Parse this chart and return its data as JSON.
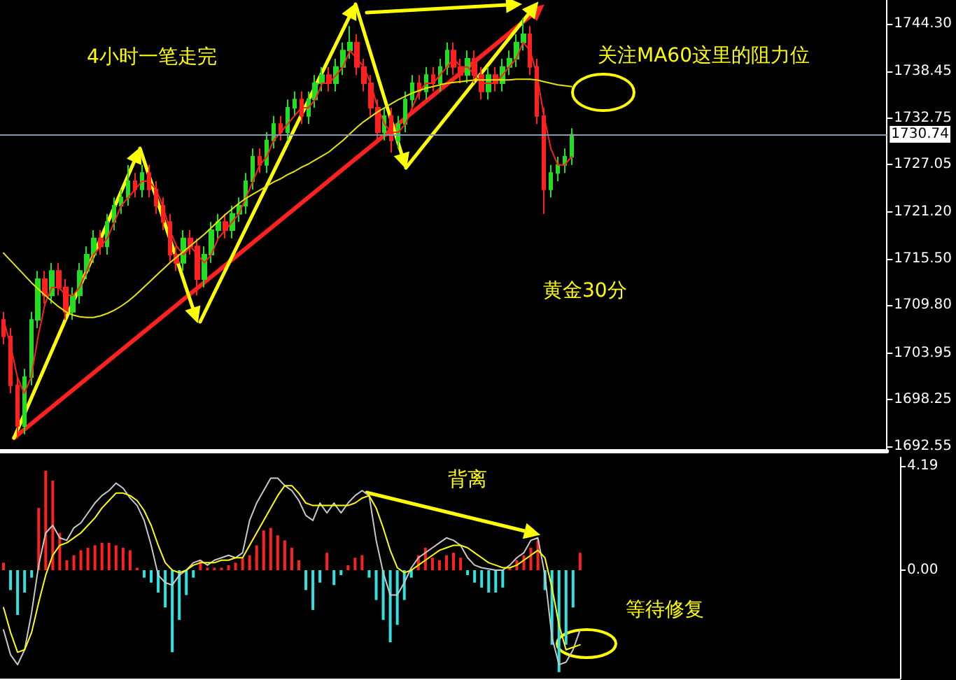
{
  "chart_data": [
    {
      "type": "candlestick",
      "categories": [
        null,
        null,
        null,
        null,
        null,
        null,
        null,
        null,
        null,
        null,
        null,
        null,
        null,
        null,
        null,
        null,
        null,
        null,
        null,
        null,
        null,
        null,
        null,
        null,
        null,
        null,
        null,
        null,
        null,
        null,
        null,
        null,
        null,
        null,
        null,
        null,
        null,
        null,
        null,
        null,
        null,
        null,
        null,
        null,
        null,
        null,
        null,
        null,
        null,
        null,
        null,
        null,
        null,
        null,
        null,
        null,
        null,
        null,
        null,
        null,
        null,
        null,
        null,
        null,
        null,
        null,
        null,
        null,
        null,
        null,
        null,
        null,
        null,
        null,
        null,
        null,
        null,
        null,
        null,
        null,
        null,
        null,
        null,
        null,
        null,
        null,
        null,
        null,
        null,
        null,
        null,
        null,
        null,
        null,
        null,
        null,
        null,
        null,
        null,
        null,
        null,
        null,
        null,
        null,
        null,
        null,
        null,
        null,
        null,
        null,
        null,
        null,
        null,
        null,
        null,
        null,
        null,
        null,
        null,
        null,
        null,
        null,
        null,
        null,
        null,
        null,
        null,
        null
      ],
      "ohlc": [
        [
          1708,
          1709,
          1705,
          1706
        ],
        [
          1706,
          1707,
          1699,
          1700
        ],
        [
          1700,
          1701,
          1693.5,
          1695
        ],
        [
          1695,
          1702,
          1694,
          1701
        ],
        [
          1701,
          1709,
          1700,
          1708
        ],
        [
          1708,
          1714,
          1707,
          1713
        ],
        [
          1713,
          1714,
          1710,
          1711
        ],
        [
          1711,
          1715,
          1710,
          1714
        ],
        [
          1714,
          1715,
          1711,
          1712
        ],
        [
          1712,
          1713,
          1708,
          1709
        ],
        [
          1709,
          1712,
          1708,
          1711
        ],
        [
          1711,
          1715,
          1710,
          1714
        ],
        [
          1714,
          1717,
          1713,
          1716
        ],
        [
          1716,
          1719,
          1715,
          1718
        ],
        [
          1718,
          1719,
          1716,
          1717
        ],
        [
          1717,
          1721,
          1716,
          1720
        ],
        [
          1720,
          1723,
          1719,
          1722
        ],
        [
          1722,
          1724,
          1721,
          1723
        ],
        [
          1723,
          1727,
          1722,
          1725
        ],
        [
          1725,
          1726,
          1723,
          1724
        ],
        [
          1724,
          1727,
          1723,
          1726
        ],
        [
          1726,
          1727,
          1723,
          1724
        ],
        [
          1724,
          1725,
          1721,
          1722
        ],
        [
          1722,
          1723,
          1719,
          1720
        ],
        [
          1720,
          1721,
          1715,
          1716
        ],
        [
          1716,
          1717,
          1714,
          1715
        ],
        [
          1715,
          1719,
          1714,
          1718
        ],
        [
          1718,
          1719,
          1716,
          1717
        ],
        [
          1717,
          1718,
          1711,
          1713
        ],
        [
          1713,
          1717,
          1712,
          1716
        ],
        [
          1716,
          1720,
          1715,
          1719
        ],
        [
          1719,
          1721,
          1718,
          1720
        ],
        [
          1720,
          1721,
          1718,
          1719
        ],
        [
          1719,
          1722,
          1718,
          1721
        ],
        [
          1721,
          1723,
          1720,
          1722
        ],
        [
          1722,
          1726,
          1721,
          1725
        ],
        [
          1725,
          1729,
          1724,
          1728
        ],
        [
          1728,
          1729,
          1726,
          1727
        ],
        [
          1727,
          1731,
          1726,
          1730
        ],
        [
          1730,
          1733,
          1729,
          1732
        ],
        [
          1732,
          1733,
          1730,
          1731
        ],
        [
          1731,
          1735,
          1730,
          1734
        ],
        [
          1734,
          1736,
          1733,
          1735
        ],
        [
          1735,
          1736,
          1732,
          1733
        ],
        [
          1733,
          1736,
          1732,
          1735
        ],
        [
          1735,
          1738,
          1734,
          1737
        ],
        [
          1737,
          1739,
          1736,
          1738
        ],
        [
          1738,
          1739,
          1736,
          1737
        ],
        [
          1737,
          1740,
          1736,
          1739
        ],
        [
          1739,
          1742,
          1738,
          1741
        ],
        [
          1741,
          1744,
          1740,
          1742
        ],
        [
          1742,
          1743,
          1738,
          1739
        ],
        [
          1739,
          1740,
          1736,
          1737
        ],
        [
          1737,
          1738,
          1733,
          1734
        ],
        [
          1734,
          1735,
          1730,
          1731
        ],
        [
          1731,
          1734,
          1730,
          1733
        ],
        [
          1733,
          1734,
          1728.5,
          1730
        ],
        [
          1730,
          1733,
          1729,
          1732
        ],
        [
          1732,
          1736,
          1731,
          1735
        ],
        [
          1735,
          1738,
          1734,
          1737
        ],
        [
          1737,
          1738,
          1735,
          1736
        ],
        [
          1736,
          1739,
          1735,
          1738
        ],
        [
          1738,
          1739,
          1736,
          1737
        ],
        [
          1737,
          1740,
          1736,
          1739
        ],
        [
          1739,
          1742,
          1738,
          1741
        ],
        [
          1741,
          1742,
          1738,
          1739
        ],
        [
          1739,
          1740,
          1737,
          1738
        ],
        [
          1738,
          1741,
          1737,
          1740
        ],
        [
          1740,
          1741,
          1737,
          1738
        ],
        [
          1738,
          1739,
          1735,
          1736
        ],
        [
          1736,
          1739,
          1735,
          1738
        ],
        [
          1738,
          1739,
          1736,
          1737
        ],
        [
          1737,
          1740,
          1736,
          1739
        ],
        [
          1739,
          1741,
          1738,
          1740
        ],
        [
          1740,
          1743,
          1739,
          1742
        ],
        [
          1742,
          1745,
          1741,
          1743
        ],
        [
          1743,
          1744,
          1738,
          1739
        ],
        [
          1739,
          1740,
          1732,
          1733
        ],
        [
          1733,
          1734,
          1721,
          1724
        ],
        [
          1724,
          1727,
          1723,
          1726
        ],
        [
          1726,
          1728,
          1725,
          1727
        ],
        [
          1727,
          1729,
          1726,
          1728
        ],
        [
          1728,
          1731.5,
          1727,
          1730.7
        ],
        null,
        null,
        null,
        null,
        null,
        null,
        null,
        null,
        null,
        null,
        null,
        null,
        null,
        null,
        null,
        null,
        null,
        null,
        null,
        null,
        null,
        null,
        null,
        null,
        null,
        null,
        null,
        null,
        null,
        null,
        null,
        null,
        null,
        null,
        null,
        null,
        null,
        null,
        null,
        null,
        null,
        null,
        null,
        null,
        null
      ],
      "colors": [
        "#ff2020",
        "#ff2020",
        "#ff2020",
        "#22dd22",
        "#22dd22",
        "#22dd22",
        "#ff2020",
        "#22dd22",
        "#ff2020",
        "#ff2020",
        "#22dd22",
        "#22dd22",
        "#22dd22",
        "#22dd22",
        "#ff2020",
        "#22dd22",
        "#22dd22",
        "#22dd22",
        "#22dd22",
        "#ff2020",
        "#22dd22",
        "#ff2020",
        "#ff2020",
        "#ff2020",
        "#ff2020",
        "#ff2020",
        "#22dd22",
        "#ff2020",
        "#ff2020",
        "#22dd22",
        "#22dd22",
        "#22dd22",
        "#ff2020",
        "#22dd22",
        "#22dd22",
        "#22dd22",
        "#22dd22",
        "#ff2020",
        "#22dd22",
        "#22dd22",
        "#ff2020",
        "#22dd22",
        "#22dd22",
        "#ff2020",
        "#22dd22",
        "#22dd22",
        "#22dd22",
        "#ff2020",
        "#22dd22",
        "#22dd22",
        "#22dd22",
        "#ff2020",
        "#ff2020",
        "#ff2020",
        "#ff2020",
        "#22dd22",
        "#ff2020",
        "#22dd22",
        "#22dd22",
        "#22dd22",
        "#ff2020",
        "#22dd22",
        "#ff2020",
        "#22dd22",
        "#22dd22",
        "#ff2020",
        "#ff2020",
        "#22dd22",
        "#ff2020",
        "#ff2020",
        "#22dd22",
        "#ff2020",
        "#22dd22",
        "#22dd22",
        "#22dd22",
        "#22dd22",
        "#ff2020",
        "#ff2020",
        "#ff2020",
        "#22dd22",
        "#22dd22",
        "#22dd22",
        "#22dd22",
        null,
        null,
        null,
        null,
        null,
        null,
        null,
        null,
        null,
        null,
        null,
        null,
        null,
        null,
        null,
        null,
        null,
        null,
        null,
        null,
        null,
        null,
        null,
        null,
        null,
        null,
        null,
        null,
        null,
        null,
        null,
        null,
        null,
        null,
        null,
        null,
        null,
        null,
        null,
        null,
        null,
        null,
        null,
        null,
        null
      ],
      "series": [
        {
          "type": "line",
          "color": "#ff2020",
          "values": [
            1708,
            1705,
            1701,
            1699,
            1701,
            1706,
            1710,
            1712,
            1712,
            1711,
            1711,
            1712,
            1714,
            1716,
            1717,
            1718,
            1720,
            1722,
            1723,
            1724,
            1725,
            1725,
            1724,
            1722,
            1719,
            1717,
            1716,
            1717,
            1716,
            1715,
            1716,
            1718,
            1719,
            1720,
            1721,
            1723,
            1725,
            1727,
            1728,
            1730,
            1731,
            1732,
            1733,
            1734,
            1734,
            1735,
            1737,
            1737,
            1738,
            1739,
            1741,
            1740,
            1739,
            1737,
            1734,
            1732,
            1731,
            1731,
            1732,
            1734,
            1736,
            1737,
            1737,
            1738,
            1739,
            1740,
            1739,
            1739,
            1738,
            1737,
            1737,
            1737,
            1738,
            1739,
            1740,
            1742,
            1741,
            1738,
            1733,
            1729,
            1727,
            1727,
            1728,
            null,
            null,
            null,
            null,
            null,
            null,
            null,
            null,
            null,
            null,
            null,
            null,
            null,
            null,
            null,
            null,
            null,
            null,
            null,
            null,
            null,
            null,
            null,
            null,
            null,
            null,
            null,
            null,
            null,
            null,
            null,
            null,
            null,
            null,
            null,
            null,
            null,
            null,
            null,
            null,
            null,
            null,
            null,
            null,
            null
          ]
        },
        {
          "type": "line",
          "color": "#e6e600",
          "values": [
            1716.2,
            1715.3,
            1714.4,
            1713.5,
            1712.6,
            1711.8,
            1711.0,
            1710.3,
            1709.6,
            1709.0,
            1708.6,
            1708.4,
            1708.3,
            1708.3,
            1708.5,
            1708.8,
            1709.2,
            1709.7,
            1710.3,
            1711.0,
            1711.8,
            1712.6,
            1713.4,
            1714.2,
            1715.0,
            1715.7,
            1716.4,
            1717.1,
            1717.8,
            1718.5,
            1719.3,
            1720.1,
            1720.9,
            1721.6,
            1722.3,
            1722.9,
            1723.4,
            1723.9,
            1724.4,
            1724.9,
            1725.3,
            1725.8,
            1726.2,
            1726.7,
            1727.1,
            1727.6,
            1728.1,
            1728.6,
            1729.3,
            1730.0,
            1730.8,
            1731.6,
            1732.3,
            1732.9,
            1733.5,
            1734.0,
            1734.5,
            1735.0,
            1735.4,
            1735.8,
            1736.1,
            1736.4,
            1736.6,
            1736.8,
            1737.0,
            1737.1,
            1737.2,
            1737.3,
            1737.4,
            1737.4,
            1737.4,
            1737.4,
            1737.4,
            1737.4,
            1737.5,
            1737.5,
            1737.5,
            1737.4,
            1737.2,
            1737.0,
            1736.8,
            1736.7,
            1736.6,
            null,
            null,
            null,
            null,
            null,
            null,
            null,
            null,
            null,
            null,
            null,
            null,
            null,
            null,
            null,
            null,
            null,
            null,
            null,
            null,
            null,
            null,
            null,
            null,
            null,
            null,
            null,
            null,
            null,
            null,
            null,
            null,
            null,
            null,
            null,
            null,
            null,
            null,
            null,
            null,
            null,
            null,
            null,
            null,
            null
          ]
        }
      ],
      "ylim": [
        1692.0,
        1747.2
      ],
      "yticks": [
        {
          "value": 1744.3,
          "label": "1744.30"
        },
        1738.45,
        1732.75,
        1727.05,
        {
          "value": 1721.2,
          "label": "1721.20"
        },
        {
          "value": 1715.5,
          "label": "1715.50"
        },
        {
          "value": 1709.8,
          "label": "1709.80"
        },
        1703.95,
        1698.25,
        1692.55
      ],
      "ref_lines": [
        {
          "axis": "y",
          "value": 1730.74,
          "label": "1730.74",
          "color": "#8a9aaa"
        }
      ],
      "annotations": [
        "4小时一笔走完",
        "关注MA60这里的阻力位",
        "黄金30分"
      ],
      "grid": false,
      "tick_labels": "y"
    },
    {
      "type": "bar",
      "categories": [
        null,
        null,
        null,
        null,
        null,
        null,
        null,
        null,
        null,
        null,
        null,
        null,
        null,
        null,
        null,
        null,
        null,
        null,
        null,
        null,
        null,
        null,
        null,
        null,
        null,
        null,
        null,
        null,
        null,
        null,
        null,
        null,
        null,
        null,
        null,
        null,
        null,
        null,
        null,
        null,
        null,
        null,
        null,
        null,
        null,
        null,
        null,
        null,
        null,
        null,
        null,
        null,
        null,
        null,
        null,
        null,
        null,
        null,
        null,
        null,
        null,
        null,
        null,
        null,
        null,
        null,
        null,
        null,
        null,
        null,
        null,
        null,
        null,
        null,
        null,
        null,
        null,
        null,
        null,
        null,
        null,
        null,
        null,
        null,
        null,
        null,
        null,
        null,
        null,
        null,
        null,
        null,
        null,
        null,
        null,
        null,
        null,
        null,
        null,
        null,
        null,
        null,
        null,
        null,
        null,
        null,
        null,
        null,
        null,
        null,
        null,
        null,
        null,
        null,
        null,
        null,
        null,
        null,
        null,
        null,
        null,
        null,
        null,
        null,
        null,
        null,
        null,
        null
      ],
      "series": [
        {
          "values": [
            0.3,
            -0.8,
            -1.8,
            -0.9,
            -0.3,
            2.5,
            4.0,
            3.6,
            1.5,
            0.4,
            0.6,
            0.8,
            0.9,
            1.0,
            1.1,
            1.1,
            1.0,
            0.9,
            0.8,
            0.1,
            -0.3,
            -0.5,
            -0.9,
            -1.5,
            -3.3,
            -2.0,
            -1.0,
            -0.3,
            0.4,
            0.1,
            0.1,
            0.1,
            0.2,
            0.3,
            0.5,
            0.6,
            1.0,
            1.6,
            1.7,
            1.4,
            1.2,
            0.9,
            0.4,
            -0.8,
            -1.6,
            -0.5,
            0.7,
            -0.6,
            -0.2,
            0.2,
            0.5,
            0.6,
            -0.3,
            -1.2,
            -2.0,
            -2.9,
            -2.2,
            -1.2,
            -0.3,
            0.6,
            0.9,
            0.5,
            0.4,
            0.6,
            0.7,
            0.5,
            -0.2,
            -0.5,
            -0.7,
            -0.9,
            -0.9,
            -0.7,
            0.1,
            0.4,
            0.6,
            0.9,
            1.2,
            -0.8,
            -3.0,
            -4.1,
            -3.0,
            -1.5,
            0.7,
            null,
            null,
            null,
            null,
            null,
            null,
            null,
            null,
            null,
            null,
            null,
            null,
            null,
            null,
            null,
            null,
            null,
            null,
            null,
            null,
            null,
            null,
            null,
            null,
            null,
            null,
            null,
            null,
            null,
            null,
            null,
            null,
            null,
            null,
            null,
            null,
            null,
            null,
            null,
            null,
            null,
            null,
            null,
            null,
            null
          ],
          "colors": [
            "#ff2020",
            "#33e0e0",
            "#33e0e0",
            "#33e0e0",
            "#33e0e0",
            "#ff2020",
            "#ff2020",
            "#ff2020",
            "#ff2020",
            "#ff2020",
            "#ff2020",
            "#ff2020",
            "#ff2020",
            "#ff2020",
            "#ff2020",
            "#ff2020",
            "#ff2020",
            "#ff2020",
            "#ff2020",
            "#ff2020",
            "#33e0e0",
            "#33e0e0",
            "#33e0e0",
            "#33e0e0",
            "#33e0e0",
            "#33e0e0",
            "#33e0e0",
            "#33e0e0",
            "#ff2020",
            "#ff2020",
            "#ff2020",
            "#ff2020",
            "#ff2020",
            "#ff2020",
            "#ff2020",
            "#ff2020",
            "#ff2020",
            "#ff2020",
            "#ff2020",
            "#ff2020",
            "#ff2020",
            "#ff2020",
            "#ff2020",
            "#33e0e0",
            "#33e0e0",
            "#33e0e0",
            "#ff2020",
            "#33e0e0",
            "#33e0e0",
            "#ff2020",
            "#ff2020",
            "#ff2020",
            "#33e0e0",
            "#33e0e0",
            "#33e0e0",
            "#33e0e0",
            "#33e0e0",
            "#33e0e0",
            "#33e0e0",
            "#ff2020",
            "#ff2020",
            "#ff2020",
            "#ff2020",
            "#ff2020",
            "#ff2020",
            "#ff2020",
            "#33e0e0",
            "#33e0e0",
            "#33e0e0",
            "#33e0e0",
            "#33e0e0",
            "#33e0e0",
            "#ff2020",
            "#ff2020",
            "#ff2020",
            "#ff2020",
            "#ff2020",
            "#33e0e0",
            "#33e0e0",
            "#33e0e0",
            "#33e0e0",
            "#33e0e0",
            "#ff2020",
            null,
            null,
            null,
            null,
            null,
            null,
            null,
            null,
            null,
            null,
            null,
            null,
            null,
            null,
            null,
            null,
            null,
            null,
            null,
            null,
            null,
            null,
            null,
            null,
            null,
            null,
            null,
            null,
            null,
            null,
            null,
            null,
            null,
            null,
            null,
            null,
            null,
            null,
            null,
            null,
            null,
            null,
            null,
            null,
            null
          ]
        },
        {
          "type": "line",
          "color": "#c8c8c8",
          "values": [
            -2.4,
            -3.4,
            -3.8,
            -3.2,
            -1.7,
            0.2,
            1.5,
            1.8,
            1.3,
            1.2,
            1.7,
            1.9,
            2.3,
            2.7,
            3.0,
            3.2,
            3.5,
            3.3,
            2.9,
            2.6,
            2.0,
            1.0,
            -0.2,
            -0.5,
            -0.6,
            -0.2,
            0,
            0.3,
            0.4,
            0.2,
            0.4,
            0.5,
            0.6,
            0.5,
            0.7,
            2.0,
            2.7,
            3.2,
            3.7,
            3.7,
            3.4,
            3.2,
            2.8,
            2.2,
            2.0,
            2.7,
            2.3,
            2.7,
            2.3,
            2.7,
            3.0,
            3.2,
            3.0,
            1.2,
            -0.1,
            -1.0,
            -1.0,
            -0.5,
            0.1,
            0.5,
            0.7,
            0.9,
            1.1,
            1.3,
            1.2,
            1.0,
            0.5,
            0.2,
            0.1,
            0.05,
            0,
            0,
            0.2,
            0.5,
            0.7,
            1.2,
            1.3,
            -0.2,
            -2.7,
            -3.8,
            -3.7,
            -3.2,
            -2.4,
            null,
            null,
            null,
            null,
            null,
            null,
            null,
            null,
            null,
            null,
            null,
            null,
            null,
            null,
            null,
            null,
            null,
            null,
            null,
            null,
            null,
            null,
            null,
            null,
            null,
            null,
            null,
            null,
            null,
            null,
            null,
            null,
            null,
            null,
            null,
            null,
            null,
            null,
            null,
            null,
            null,
            null,
            null,
            null,
            null
          ]
        },
        {
          "type": "line",
          "color": "#ffff00",
          "values": [
            -1.5,
            -2.5,
            -3.3,
            -3.2,
            -2.5,
            -1.3,
            -0.2,
            0.6,
            1.0,
            1.1,
            1.3,
            1.5,
            1.8,
            2.1,
            2.5,
            2.8,
            3.1,
            3.1,
            3.0,
            2.8,
            2.4,
            1.8,
            1.0,
            0.3,
            0,
            -0.1,
            0,
            0.2,
            0.3,
            0.3,
            0.3,
            0.4,
            0.4,
            0.5,
            0.5,
            1.0,
            1.5,
            2.0,
            2.5,
            3.0,
            3.4,
            3.4,
            3.1,
            2.7,
            2.6,
            2.6,
            2.6,
            2.6,
            2.6,
            2.6,
            2.7,
            2.9,
            3.0,
            2.5,
            1.7,
            0.8,
            0.1,
            -0.1,
            0,
            0.2,
            0.4,
            0.6,
            0.8,
            0.9,
            1.0,
            1.0,
            0.9,
            0.7,
            0.5,
            0.3,
            0.2,
            0.1,
            0.1,
            0.2,
            0.4,
            0.6,
            0.8,
            0.5,
            -0.7,
            -2.2,
            -3.2,
            -3.1,
            -3.0,
            null,
            null,
            null,
            null,
            null,
            null,
            null,
            null,
            null,
            null,
            null,
            null,
            null,
            null,
            null,
            null,
            null,
            null,
            null,
            null,
            null,
            null,
            null,
            null,
            null,
            null,
            null,
            null,
            null,
            null,
            null,
            null,
            null,
            null,
            null,
            null,
            null,
            null,
            null,
            null,
            null,
            null,
            null,
            null,
            null
          ]
        }
      ],
      "ylim": [
        -4.36,
        4.53
      ],
      "yticks": [
        4.19,
        {
          "value": 0,
          "label": "0.00"
        }
      ],
      "annotations": [
        "背离",
        "等待修复"
      ],
      "grid": false,
      "tick_labels": "y"
    }
  ]
}
